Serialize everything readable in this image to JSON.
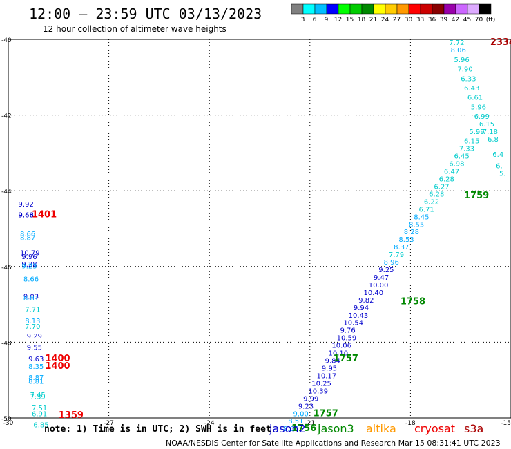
{
  "header": {
    "title": "12:00 — 23:59 UTC 03/13/2023",
    "subtitle": "12 hour collection of altimeter wave heights"
  },
  "colorbar": {
    "colors": [
      "#808080",
      "#00ffff",
      "#00bfff",
      "#0000ff",
      "#00ff00",
      "#00cc00",
      "#008800",
      "#ffff00",
      "#ffcc00",
      "#ff9900",
      "#ff0000",
      "#cc0000",
      "#880000",
      "#9900aa",
      "#cc66ff",
      "#ddaaff",
      "#000000"
    ],
    "labels": [
      "3",
      "6",
      "9",
      "12",
      "15",
      "18",
      "21",
      "24",
      "27",
      "30",
      "33",
      "36",
      "39",
      "42",
      "45",
      "70",
      "(ft)"
    ]
  },
  "footer": {
    "note": "note: 1) Time is in UTC; 2) SWH is in feet",
    "legend": [
      {
        "label": "jason2",
        "color": "#0000cc"
      },
      {
        "label": "jason3",
        "color": "#008800"
      },
      {
        "label": "altika",
        "color": "#ff9900"
      },
      {
        "label": "cryosat",
        "color": "#ee0000"
      },
      {
        "label": "s3a",
        "color": "#aa0000"
      }
    ],
    "credit": "NOAA/NESDIS Center for Satellite Applications and Research   Mar 15 08:31:41 UTC 2023"
  },
  "chart_data": {
    "type": "scatter",
    "xlim": [
      -30,
      -15
    ],
    "ylim": [
      -50,
      -40
    ],
    "x_ticks": [
      -30,
      -27,
      -24,
      -21,
      -18,
      -15
    ],
    "y_ticks": [
      -40,
      -42,
      -44,
      -46,
      -48,
      -50
    ],
    "grid": true,
    "series": [
      {
        "name": "jason2",
        "color_key": "data",
        "points": [
          {
            "x": -29.7,
            "y": -44.42,
            "label": "9.92",
            "c": "#0000cc"
          },
          {
            "x": -29.7,
            "y": -44.7,
            "label": "9.46",
            "c": "#0000cc"
          },
          {
            "x": -29.7,
            "y": -44.7,
            "label": "9.68",
            "c": "#0000cc"
          },
          {
            "x": -29.65,
            "y": -45.2,
            "label": "8.66",
            "c": "#00aaff"
          },
          {
            "x": -29.65,
            "y": -45.3,
            "label": "8.87",
            "c": "#00aaff"
          },
          {
            "x": -29.65,
            "y": -45.7,
            "label": "10.79",
            "c": "#0000cc"
          },
          {
            "x": -29.6,
            "y": -45.8,
            "label": "9.96",
            "c": "#0000cc"
          },
          {
            "x": -29.6,
            "y": -46.0,
            "label": "9.28",
            "c": "#0000cc"
          },
          {
            "x": -29.6,
            "y": -46.05,
            "label": "9.23",
            "c": "#00aaff"
          },
          {
            "x": -29.55,
            "y": -46.4,
            "label": "8.66",
            "c": "#00aaff"
          },
          {
            "x": -29.55,
            "y": -46.85,
            "label": "9.03",
            "c": "#0000cc"
          },
          {
            "x": -29.55,
            "y": -46.9,
            "label": "8.81",
            "c": "#00aaff"
          },
          {
            "x": -29.5,
            "y": -47.2,
            "label": "7.71",
            "c": "#00cccc"
          },
          {
            "x": -29.5,
            "y": -47.5,
            "label": "8.13",
            "c": "#00aaff"
          },
          {
            "x": -29.5,
            "y": -47.65,
            "label": "7.70",
            "c": "#00cccc"
          },
          {
            "x": -29.45,
            "y": -47.9,
            "label": "9.29",
            "c": "#0000cc"
          },
          {
            "x": -29.45,
            "y": -48.2,
            "label": "9.55",
            "c": "#0000cc"
          },
          {
            "x": -29.4,
            "y": -48.5,
            "label": "9.63",
            "c": "#0000cc"
          },
          {
            "x": -29.4,
            "y": -48.7,
            "label": "8.35",
            "c": "#00aaff"
          },
          {
            "x": -29.4,
            "y": -49.0,
            "label": "8.87",
            "c": "#00aaff"
          },
          {
            "x": -29.4,
            "y": -49.1,
            "label": "8.81",
            "c": "#00aaff"
          },
          {
            "x": -29.35,
            "y": -49.45,
            "label": "7.45",
            "c": "#00cccc"
          },
          {
            "x": -29.35,
            "y": -49.5,
            "label": "7.39",
            "c": "#00cccc"
          },
          {
            "x": -29.3,
            "y": -49.8,
            "label": "7.51",
            "c": "#00cccc"
          },
          {
            "x": -29.3,
            "y": -49.95,
            "label": "6.91",
            "c": "#00cccc"
          },
          {
            "x": -29.25,
            "y": -50.25,
            "label": "6.85",
            "c": "#00cccc"
          }
        ]
      },
      {
        "name": "track_east",
        "points": [
          {
            "x": -21.8,
            "y": -50.35,
            "label": "8.66",
            "c": "#00aaff"
          },
          {
            "x": -21.65,
            "y": -50.15,
            "label": "8.51",
            "c": "#00aaff"
          },
          {
            "x": -21.5,
            "y": -49.95,
            "label": "9.00",
            "c": "#00aaff"
          },
          {
            "x": -21.35,
            "y": -49.75,
            "label": "9.23",
            "c": "#0000cc"
          },
          {
            "x": -21.2,
            "y": -49.55,
            "label": "9.99",
            "c": "#0000cc"
          },
          {
            "x": -21.05,
            "y": -49.35,
            "label": "10.39",
            "c": "#0000cc"
          },
          {
            "x": -20.95,
            "y": -49.15,
            "label": "10.25",
            "c": "#0000cc"
          },
          {
            "x": -20.8,
            "y": -48.95,
            "label": "10.17",
            "c": "#0000cc"
          },
          {
            "x": -20.65,
            "y": -48.75,
            "label": "9.95",
            "c": "#0000cc"
          },
          {
            "x": -20.55,
            "y": -48.55,
            "label": "9.84",
            "c": "#0000cc"
          },
          {
            "x": -20.45,
            "y": -48.35,
            "label": "10.10",
            "c": "#0000cc"
          },
          {
            "x": -20.35,
            "y": -48.15,
            "label": "10.06",
            "c": "#0000cc"
          },
          {
            "x": -20.2,
            "y": -47.95,
            "label": "10.59",
            "c": "#0000cc"
          },
          {
            "x": -20.1,
            "y": -47.75,
            "label": "9.76",
            "c": "#0000cc"
          },
          {
            "x": -20.0,
            "y": -47.55,
            "label": "10.54",
            "c": "#0000cc"
          },
          {
            "x": -19.85,
            "y": -47.35,
            "label": "10.43",
            "c": "#0000cc"
          },
          {
            "x": -19.7,
            "y": -47.15,
            "label": "9.94",
            "c": "#0000cc"
          },
          {
            "x": -19.55,
            "y": -46.95,
            "label": "9.82",
            "c": "#0000cc"
          },
          {
            "x": -19.4,
            "y": -46.75,
            "label": "10.40",
            "c": "#0000cc"
          },
          {
            "x": -19.25,
            "y": -46.55,
            "label": "10.00",
            "c": "#0000cc"
          },
          {
            "x": -19.1,
            "y": -46.35,
            "label": "9.47",
            "c": "#0000cc"
          },
          {
            "x": -18.95,
            "y": -46.15,
            "label": "9.25",
            "c": "#0000cc"
          },
          {
            "x": -18.8,
            "y": -45.95,
            "label": "8.96",
            "c": "#00aaff"
          },
          {
            "x": -18.65,
            "y": -45.75,
            "label": "7.79",
            "c": "#00cccc"
          },
          {
            "x": -18.5,
            "y": -45.55,
            "label": "8.37",
            "c": "#00aaff"
          },
          {
            "x": -18.35,
            "y": -45.35,
            "label": "8.53",
            "c": "#00aaff"
          },
          {
            "x": -18.2,
            "y": -45.15,
            "label": "8.28",
            "c": "#00aaff"
          },
          {
            "x": -18.05,
            "y": -44.95,
            "label": "8.55",
            "c": "#00aaff"
          },
          {
            "x": -17.9,
            "y": -44.75,
            "label": "8.45",
            "c": "#00aaff"
          },
          {
            "x": -17.75,
            "y": -44.55,
            "label": "6.71",
            "c": "#00cccc"
          },
          {
            "x": -17.6,
            "y": -44.35,
            "label": "6.22",
            "c": "#00cccc"
          },
          {
            "x": -17.45,
            "y": -44.15,
            "label": "6.28",
            "c": "#00cccc"
          },
          {
            "x": -17.3,
            "y": -43.95,
            "label": "6.27",
            "c": "#00cccc"
          },
          {
            "x": -17.15,
            "y": -43.75,
            "label": "6.28",
            "c": "#00cccc"
          },
          {
            "x": -17.0,
            "y": -43.55,
            "label": "6.47",
            "c": "#00cccc"
          },
          {
            "x": -16.85,
            "y": -43.35,
            "label": "6.98",
            "c": "#00cccc"
          },
          {
            "x": -16.7,
            "y": -43.15,
            "label": "6.45",
            "c": "#00cccc"
          },
          {
            "x": -16.55,
            "y": -42.95,
            "label": "7.33",
            "c": "#00cccc"
          },
          {
            "x": -16.4,
            "y": -42.75,
            "label": "6.15",
            "c": "#00cccc"
          },
          {
            "x": -16.25,
            "y": -42.5,
            "label": "5.99",
            "c": "#00cccc"
          }
        ]
      },
      {
        "name": "track_upper",
        "points": [
          {
            "x": -16.85,
            "y": -40.15,
            "label": "7.72",
            "c": "#00cccc"
          },
          {
            "x": -16.8,
            "y": -40.35,
            "label": "8.06",
            "c": "#00aaff"
          },
          {
            "x": -16.7,
            "y": -40.6,
            "label": "5.96",
            "c": "#00cccc"
          },
          {
            "x": -16.6,
            "y": -40.85,
            "label": "7.90",
            "c": "#00cccc"
          },
          {
            "x": -16.5,
            "y": -41.1,
            "label": "6.33",
            "c": "#00cccc"
          },
          {
            "x": -16.4,
            "y": -41.35,
            "label": "6.43",
            "c": "#00cccc"
          },
          {
            "x": -16.3,
            "y": -41.6,
            "label": "6.61",
            "c": "#00cccc"
          },
          {
            "x": -16.2,
            "y": -41.85,
            "label": "5.96",
            "c": "#00cccc"
          },
          {
            "x": -16.1,
            "y": -42.1,
            "label": "6.99",
            "c": "#00cccc"
          },
          {
            "x": -15.95,
            "y": -42.3,
            "label": "6.15",
            "c": "#00cccc"
          },
          {
            "x": -15.85,
            "y": -42.5,
            "label": "7.18",
            "c": "#00cccc"
          },
          {
            "x": -15.7,
            "y": -42.7,
            "label": "6.8",
            "c": "#00cccc"
          },
          {
            "x": -15.55,
            "y": -43.1,
            "label": "6.4",
            "c": "#00cccc"
          },
          {
            "x": -15.45,
            "y": -43.4,
            "label": "6.",
            "c": "#00cccc"
          },
          {
            "x": -15.35,
            "y": -43.6,
            "label": "5.",
            "c": "#00cccc"
          }
        ]
      },
      {
        "name": "times",
        "points": [
          {
            "x": -29.3,
            "y": -44.7,
            "label": "1401",
            "c": "#ee0000"
          },
          {
            "x": -28.9,
            "y": -48.5,
            "label": "1400",
            "c": "#ee0000"
          },
          {
            "x": -28.9,
            "y": -48.7,
            "label": "1400",
            "c": "#ee0000"
          },
          {
            "x": -28.5,
            "y": -50.0,
            "label": "1359",
            "c": "#ee0000"
          },
          {
            "x": -20.3,
            "y": -48.5,
            "label": "1757",
            "c": "#008800"
          },
          {
            "x": -20.9,
            "y": -49.95,
            "label": "1757",
            "c": "#008800"
          },
          {
            "x": -21.55,
            "y": -50.35,
            "label": "1756",
            "c": "#008800"
          },
          {
            "x": -18.3,
            "y": -47.0,
            "label": "1758",
            "c": "#008800"
          },
          {
            "x": -16.4,
            "y": -44.2,
            "label": "1759",
            "c": "#008800"
          },
          {
            "x": -15.62,
            "y": -40.15,
            "label": "2334",
            "c": "#aa0000"
          }
        ]
      }
    ]
  }
}
